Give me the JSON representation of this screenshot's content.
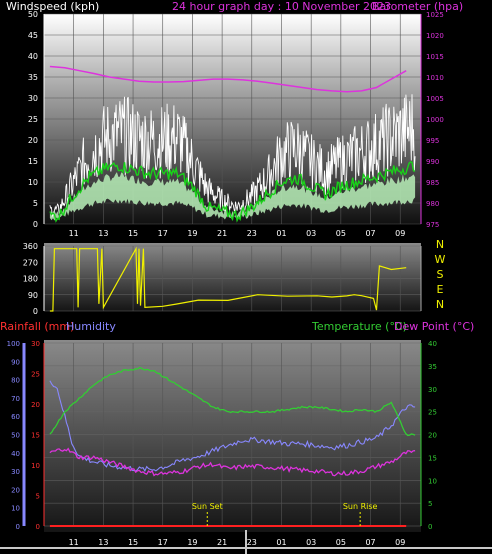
{
  "chart_data": [
    {
      "type": "line",
      "title": "24 hour graph day : 10 November 2023",
      "ylabel_left": "Windspeed (kph)",
      "ylabel_right": "Barometer (hpa)",
      "x_ticks": [
        "11",
        "13",
        "15",
        "17",
        "19",
        "21",
        "23",
        "01",
        "03",
        "05",
        "07",
        "09"
      ],
      "ylim_left": [
        0,
        50
      ],
      "yticks_left": [
        "0",
        "5",
        "10",
        "15",
        "20",
        "25",
        "30",
        "35",
        "40",
        "45",
        "50"
      ],
      "ylim_right": [
        975,
        1025
      ],
      "yticks_right": [
        "975",
        "980",
        "985",
        "990",
        "995",
        "1000",
        "1005",
        "1010",
        "1015",
        "1020",
        "1025"
      ],
      "series": [
        {
          "key": "gust",
          "color": "#ffffff",
          "axis": "left",
          "x_hours": [
            0,
            1,
            2,
            3,
            4,
            5,
            6,
            7,
            8,
            9,
            10,
            11,
            12,
            13,
            14,
            15,
            16,
            17,
            18,
            19,
            20,
            21,
            22,
            23,
            24
          ],
          "values": [
            4,
            12,
            20,
            24,
            26,
            25,
            24,
            24,
            25,
            18,
            10,
            7,
            5,
            8,
            13,
            20,
            22,
            18,
            15,
            18,
            20,
            22,
            24,
            26,
            28
          ]
        },
        {
          "key": "average",
          "color": "#19d219",
          "axis": "left",
          "x_hours": [
            0,
            1,
            2,
            3,
            4,
            5,
            6,
            7,
            8,
            9,
            10,
            11,
            12,
            13,
            14,
            15,
            16,
            17,
            18,
            19,
            20,
            21,
            22,
            23,
            24
          ],
          "values": [
            2,
            7,
            11,
            13,
            14,
            13,
            12,
            12,
            12,
            9,
            4,
            3,
            2,
            4,
            7,
            10,
            11,
            9,
            7,
            9,
            10,
            11,
            12,
            13,
            14
          ]
        },
        {
          "key": "barometer",
          "color": "#dd33dd",
          "axis": "right",
          "x_hours": [
            0,
            1,
            2,
            3,
            4,
            5,
            6,
            7,
            8,
            9,
            10,
            11,
            12,
            13,
            14,
            15,
            16,
            17,
            18,
            19,
            20,
            21,
            22,
            23,
            24
          ],
          "values": [
            1012.5,
            1012.2,
            1011.5,
            1010.8,
            1010.0,
            1009.5,
            1009.0,
            1008.8,
            1008.8,
            1008.9,
            1009.2,
            1009.5,
            1009.5,
            1009.3,
            1009.0,
            1008.5,
            1008.0,
            1007.5,
            1007.0,
            1006.7,
            1006.5,
            1006.7,
            1007.5,
            1009.5,
            1011.5
          ]
        }
      ]
    },
    {
      "type": "line",
      "ylabel_left": "",
      "ylim_left": [
        0,
        360
      ],
      "yticks_left": [
        "0",
        "90",
        "180",
        "270",
        "360"
      ],
      "compass_labels": [
        "N",
        "W",
        "S",
        "E",
        "N"
      ],
      "series": [
        {
          "key": "direction",
          "color": "#f0f000",
          "x_hours": [
            0,
            0.2,
            0.3,
            1.8,
            1.9,
            2.0,
            2.1,
            3.2,
            3.3,
            3.5,
            3.6,
            5.8,
            5.9,
            6.0,
            6.1,
            6.3,
            6.4,
            7.6,
            8.5,
            10,
            12,
            14,
            16,
            18,
            19,
            20,
            20.5,
            21,
            21.8,
            22,
            22.2,
            23,
            24
          ],
          "values": [
            0,
            0,
            345,
            345,
            20,
            345,
            345,
            345,
            40,
            345,
            20,
            345,
            40,
            345,
            30,
            345,
            20,
            20,
            40,
            55,
            60,
            85,
            88,
            85,
            80,
            82,
            90,
            80,
            70,
            5,
            250,
            230,
            240
          ]
        }
      ]
    },
    {
      "type": "line",
      "ylabel_left": "Rainfall (mm)",
      "ylabel_left2": "Humidity",
      "ylabel_right": "Temperature (°C)",
      "ylabel_right2": "Dew Point (°C)",
      "ylim_humidity": [
        0,
        100
      ],
      "yticks_humidity": [
        "0",
        "10",
        "20",
        "30",
        "40",
        "50",
        "60",
        "70",
        "80",
        "90",
        "100"
      ],
      "ylim_rain": [
        0,
        30
      ],
      "yticks_rain": [
        "0",
        "5",
        "10",
        "15",
        "20",
        "25",
        "30"
      ],
      "ylim_temp": [
        0,
        40
      ],
      "yticks_temp": [
        "0",
        "5",
        "10",
        "15",
        "20",
        "25",
        "30",
        "35",
        "40"
      ],
      "x_ticks": [
        "11",
        "13",
        "15",
        "17",
        "19",
        "21",
        "23",
        "01",
        "03",
        "05",
        "07",
        "09"
      ],
      "sun_set": "Sun Set",
      "sun_rise": "Sun Rise",
      "series": [
        {
          "key": "humidity",
          "color": "#8888ff",
          "axis": "humidity",
          "x_hours": [
            0,
            0.5,
            1,
            1.5,
            2,
            3,
            4,
            5,
            6,
            7,
            8,
            9,
            10,
            11,
            12,
            13,
            14,
            15,
            16,
            17,
            18,
            19,
            20,
            21,
            22,
            23,
            24
          ],
          "values": [
            80,
            75,
            60,
            45,
            38,
            35,
            33,
            32,
            31,
            31,
            33,
            36,
            38,
            41,
            44,
            47,
            47,
            46,
            45,
            45,
            44,
            43,
            44,
            46,
            48,
            55,
            65
          ]
        },
        {
          "key": "temperature",
          "color": "#33cc33",
          "axis": "temp",
          "x_hours": [
            0,
            1,
            2,
            3,
            4,
            5,
            6,
            7,
            8,
            9,
            10,
            11,
            12,
            13,
            14,
            15,
            16,
            17,
            18,
            19,
            20,
            21,
            22,
            23,
            24
          ],
          "values": [
            20,
            25,
            28,
            31,
            33,
            34,
            34.5,
            34,
            32,
            30,
            28,
            26,
            25,
            25,
            25,
            25,
            25.5,
            26,
            26,
            25.5,
            25,
            25.5,
            25,
            27,
            20
          ]
        },
        {
          "key": "dewpoint",
          "color": "#dd33dd",
          "axis": "temp",
          "x_hours": [
            0,
            1,
            2,
            3,
            4,
            5,
            6,
            7,
            8,
            9,
            10,
            11,
            12,
            13,
            14,
            15,
            16,
            17,
            18,
            19,
            20,
            21,
            22,
            23,
            24
          ],
          "values": [
            16,
            17,
            15,
            15,
            14,
            13,
            12,
            11.5,
            11.5,
            12,
            13,
            13.5,
            12.5,
            13,
            13,
            12.8,
            12.5,
            12.2,
            12,
            11.5,
            11.5,
            12,
            13,
            14,
            16
          ]
        },
        {
          "key": "rainfall",
          "color": "#ff2020",
          "axis": "rain",
          "x_hours": [
            0,
            24
          ],
          "values": [
            0,
            0
          ]
        }
      ]
    }
  ]
}
